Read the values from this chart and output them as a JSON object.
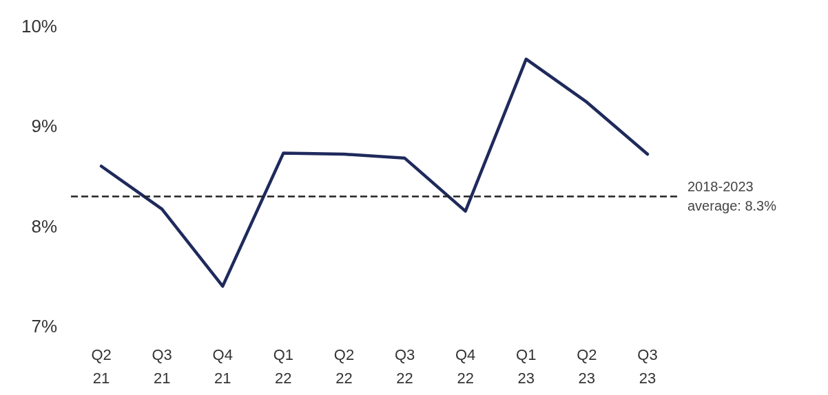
{
  "chart_data": {
    "type": "line",
    "categories": [
      "Q2\n21",
      "Q3\n21",
      "Q4\n21",
      "Q1\n22",
      "Q2\n22",
      "Q3\n22",
      "Q4\n22",
      "Q1\n23",
      "Q2\n23",
      "Q3\n23"
    ],
    "series": [
      {
        "color": "#1f2a5c",
        "values": [
          8.6,
          8.17,
          7.4,
          8.73,
          8.72,
          8.68,
          8.15,
          9.67,
          9.24,
          8.72
        ]
      }
    ],
    "ylim": [
      7,
      10
    ],
    "yticks": [
      {
        "value": 7,
        "label": "7%"
      },
      {
        "value": 8,
        "label": "8%"
      },
      {
        "value": 9,
        "label": "9%"
      },
      {
        "value": 10,
        "label": "10%"
      }
    ],
    "ref_lines": [
      {
        "axis": "y",
        "value": 8.3,
        "label": "2018-2023\naverage: 8.3%",
        "color": "#222222",
        "line_style": "dashed"
      }
    ],
    "grid": false,
    "marker": "none",
    "line_style": "solid"
  }
}
